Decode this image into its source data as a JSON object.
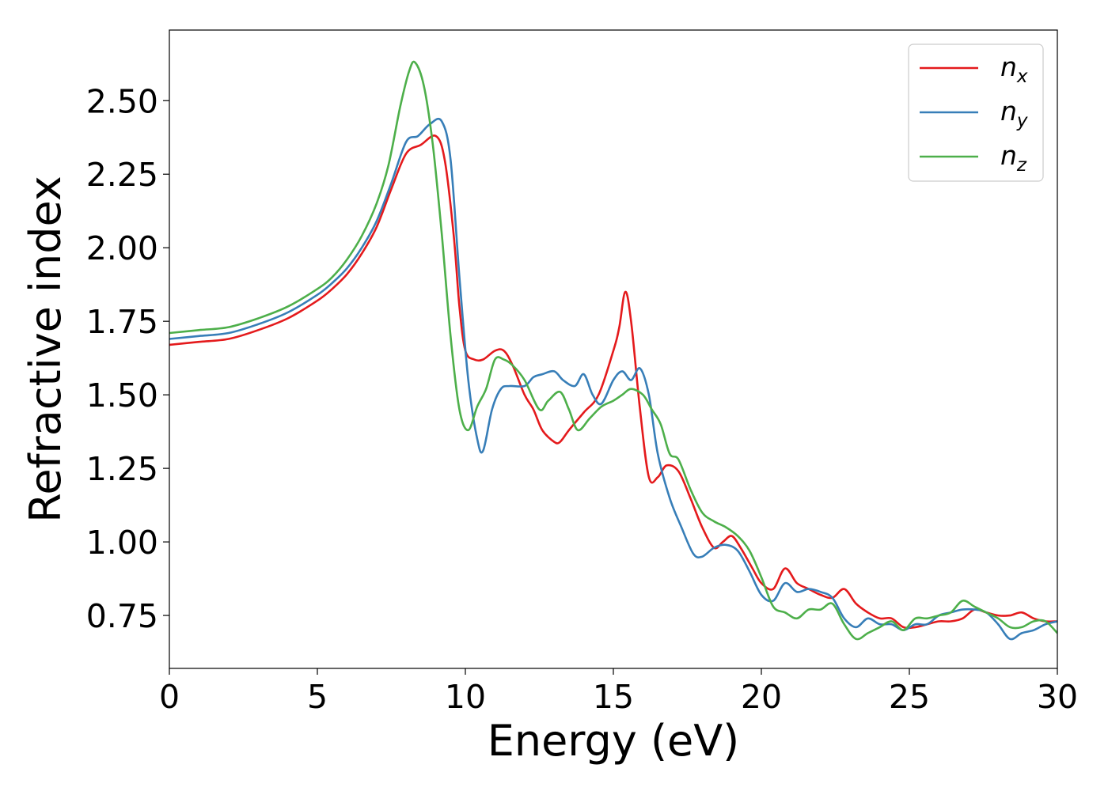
{
  "chart_data": {
    "type": "line",
    "xlabel": "Energy (eV)",
    "ylabel": "Refractive index",
    "xlim": [
      0,
      30
    ],
    "ylim": [
      0.57,
      2.74
    ],
    "x_ticks": [
      0,
      5,
      10,
      15,
      20,
      25,
      30
    ],
    "x_tick_labels": [
      "0",
      "5",
      "10",
      "15",
      "20",
      "25",
      "30"
    ],
    "y_ticks": [
      0.75,
      1.0,
      1.25,
      1.5,
      1.75,
      2.0,
      2.25,
      2.5
    ],
    "y_tick_labels": [
      "0.75",
      "1.00",
      "1.25",
      "1.50",
      "1.75",
      "2.00",
      "2.25",
      "2.50"
    ],
    "grid": false,
    "legend_position": "top-right",
    "series": [
      {
        "name": "n",
        "subscript": "x",
        "color": "#e41a1c",
        "x": [
          0,
          1,
          2,
          3,
          4,
          5,
          5.5,
          6,
          6.5,
          7,
          7.5,
          8,
          8.5,
          9,
          9.3,
          9.6,
          9.8,
          10,
          10.3,
          10.6,
          11,
          11.3,
          11.6,
          12,
          12.3,
          12.6,
          13,
          13.2,
          13.5,
          14,
          14.5,
          15,
          15.2,
          15.4,
          15.6,
          15.9,
          16.2,
          16.5,
          16.8,
          17.2,
          17.6,
          18,
          18.4,
          18.7,
          19,
          19.3,
          19.7,
          20,
          20.4,
          20.8,
          21.2,
          21.6,
          22,
          22.4,
          22.8,
          23.2,
          23.6,
          24,
          24.4,
          24.8,
          25.2,
          25.6,
          26,
          26.4,
          26.8,
          27.2,
          27.6,
          28,
          28.4,
          28.8,
          29.2,
          29.6,
          30
        ],
        "y": [
          1.67,
          1.68,
          1.69,
          1.72,
          1.76,
          1.82,
          1.86,
          1.91,
          1.98,
          2.07,
          2.2,
          2.32,
          2.35,
          2.38,
          2.3,
          2.05,
          1.8,
          1.65,
          1.62,
          1.62,
          1.65,
          1.65,
          1.6,
          1.5,
          1.45,
          1.38,
          1.34,
          1.34,
          1.38,
          1.44,
          1.5,
          1.65,
          1.73,
          1.85,
          1.75,
          1.45,
          1.22,
          1.22,
          1.26,
          1.24,
          1.15,
          1.05,
          0.98,
          1.0,
          1.02,
          0.98,
          0.91,
          0.86,
          0.84,
          0.91,
          0.86,
          0.84,
          0.82,
          0.81,
          0.84,
          0.79,
          0.76,
          0.74,
          0.74,
          0.71,
          0.71,
          0.72,
          0.73,
          0.73,
          0.74,
          0.77,
          0.76,
          0.75,
          0.75,
          0.76,
          0.74,
          0.73,
          0.73
        ]
      },
      {
        "name": "n",
        "subscript": "y",
        "color": "#377eb8",
        "x": [
          0,
          1,
          2,
          3,
          4,
          5,
          5.5,
          6,
          6.5,
          7,
          7.5,
          8,
          8.4,
          8.8,
          9.2,
          9.5,
          9.8,
          10.1,
          10.4,
          10.6,
          10.9,
          11.2,
          11.5,
          12,
          12.3,
          12.6,
          13,
          13.3,
          13.7,
          14,
          14.3,
          14.6,
          15,
          15.3,
          15.6,
          15.9,
          16.2,
          16.5,
          16.9,
          17.3,
          17.7,
          18,
          18.4,
          18.8,
          19.2,
          19.6,
          20,
          20.4,
          20.8,
          21.2,
          21.6,
          22,
          22.4,
          22.8,
          23.2,
          23.6,
          24,
          24.4,
          24.8,
          25.2,
          25.6,
          26,
          26.4,
          26.8,
          27.2,
          27.6,
          28,
          28.4,
          28.8,
          29.2,
          29.6,
          30
        ],
        "y": [
          1.69,
          1.7,
          1.71,
          1.74,
          1.78,
          1.84,
          1.88,
          1.93,
          2.0,
          2.09,
          2.22,
          2.36,
          2.38,
          2.42,
          2.43,
          2.3,
          1.9,
          1.55,
          1.35,
          1.31,
          1.45,
          1.52,
          1.53,
          1.53,
          1.56,
          1.57,
          1.58,
          1.55,
          1.53,
          1.57,
          1.5,
          1.47,
          1.55,
          1.58,
          1.55,
          1.59,
          1.5,
          1.3,
          1.15,
          1.05,
          0.96,
          0.95,
          0.98,
          0.99,
          0.97,
          0.9,
          0.82,
          0.8,
          0.86,
          0.83,
          0.84,
          0.83,
          0.81,
          0.74,
          0.71,
          0.74,
          0.72,
          0.72,
          0.7,
          0.72,
          0.72,
          0.75,
          0.76,
          0.77,
          0.77,
          0.76,
          0.72,
          0.67,
          0.69,
          0.7,
          0.72,
          0.73
        ]
      },
      {
        "name": "n",
        "subscript": "z",
        "color": "#4daf4a",
        "x": [
          0,
          1,
          2,
          3,
          4,
          5,
          5.5,
          6,
          6.5,
          7,
          7.4,
          7.8,
          8.1,
          8.3,
          8.6,
          8.9,
          9.2,
          9.5,
          9.8,
          10.1,
          10.4,
          10.7,
          11,
          11.3,
          11.6,
          12,
          12.5,
          12.8,
          13.2,
          13.5,
          13.8,
          14.2,
          14.6,
          15,
          15.3,
          15.6,
          16,
          16.3,
          16.6,
          16.9,
          17.2,
          17.6,
          18,
          18.4,
          18.8,
          19.2,
          19.6,
          20,
          20.4,
          20.8,
          21.2,
          21.6,
          22,
          22.4,
          22.8,
          23.2,
          23.6,
          24,
          24.4,
          24.8,
          25.2,
          25.6,
          26,
          26.4,
          26.8,
          27.2,
          27.6,
          28,
          28.4,
          28.8,
          29.2,
          29.6,
          30
        ],
        "y": [
          1.71,
          1.72,
          1.73,
          1.76,
          1.8,
          1.86,
          1.9,
          1.96,
          2.04,
          2.15,
          2.28,
          2.48,
          2.6,
          2.63,
          2.55,
          2.35,
          2.05,
          1.7,
          1.45,
          1.38,
          1.46,
          1.52,
          1.62,
          1.62,
          1.6,
          1.55,
          1.45,
          1.48,
          1.51,
          1.45,
          1.38,
          1.42,
          1.46,
          1.48,
          1.5,
          1.52,
          1.5,
          1.45,
          1.4,
          1.3,
          1.28,
          1.18,
          1.1,
          1.07,
          1.05,
          1.02,
          0.97,
          0.88,
          0.78,
          0.76,
          0.74,
          0.77,
          0.77,
          0.79,
          0.72,
          0.67,
          0.69,
          0.71,
          0.73,
          0.7,
          0.74,
          0.74,
          0.75,
          0.76,
          0.8,
          0.78,
          0.76,
          0.74,
          0.71,
          0.71,
          0.73,
          0.73,
          0.69
        ]
      }
    ]
  }
}
